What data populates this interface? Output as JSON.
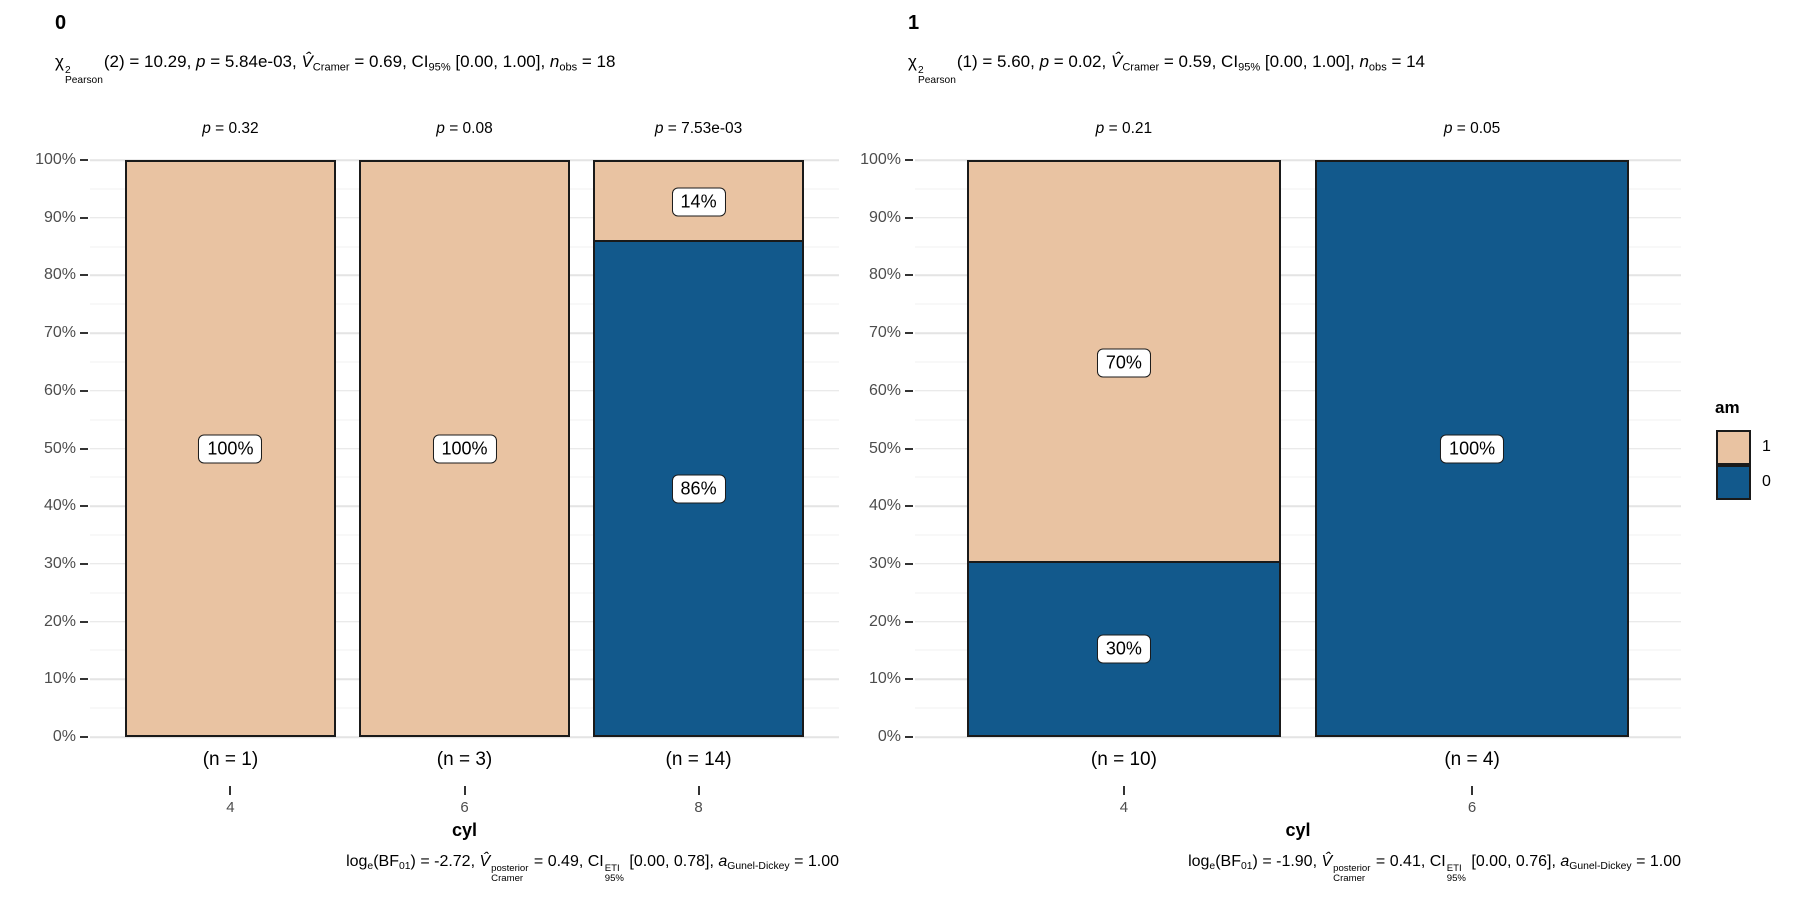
{
  "colors": {
    "1": "#E9C3A2",
    "0": "#12598C",
    "bar_border": "#1a1a1a",
    "grid_major": "#e4e4e4",
    "grid_minor": "#f2f2f2",
    "axis_text": "#4d4d4d"
  },
  "legend": {
    "title": "am",
    "items": [
      {
        "label": "1",
        "group": "1",
        "color": "#E9C3A2"
      },
      {
        "label": "0",
        "group": "0",
        "color": "#12598C"
      }
    ]
  },
  "chart_data": [
    {
      "type": "bar",
      "stacked": true,
      "percent": true,
      "title": "0",
      "xlabel": "cyl",
      "legend_title": "am",
      "ylim": [
        0,
        100
      ],
      "yticks": [
        "0%",
        "10%",
        "20%",
        "30%",
        "40%",
        "50%",
        "60%",
        "70%",
        "80%",
        "90%",
        "100%"
      ],
      "subtitle_plain": "χ²Pearson(2) = 10.29, p = 5.84e-03, V̂Cramer = 0.69, CI95% [0.00, 1.00], nobs = 18",
      "caption_plain": "loge(BF01) = -2.72, V̂Cramer posterior = 0.49, CI95% ETI [0.00, 0.78], aGunel-Dickey = 1.00",
      "subtitle_segments": [
        {
          "t": "χ"
        },
        {
          "sup": "2",
          "sub": "Pearson"
        },
        {
          "t": "(2) = 10.29, "
        },
        {
          "t": "p",
          "s": "i"
        },
        {
          "t": " = 5.84e-03, "
        },
        {
          "t": "V̂",
          "s": "i"
        },
        {
          "t": "Cramer",
          "s": "sub"
        },
        {
          "t": " = 0.69, CI"
        },
        {
          "t": "95%",
          "s": "sub"
        },
        {
          "t": " [0.00, 1.00], "
        },
        {
          "t": "n",
          "s": "i"
        },
        {
          "t": "obs",
          "s": "sub"
        },
        {
          "t": " = 18"
        }
      ],
      "caption_segments": [
        {
          "t": "log"
        },
        {
          "t": "e",
          "s": "sub"
        },
        {
          "t": "(BF"
        },
        {
          "t": "01",
          "s": "sub"
        },
        {
          "t": ") = -2.72, "
        },
        {
          "t": "V̂",
          "s": "i"
        },
        {
          "sup": "posterior",
          "sub": "Cramer"
        },
        {
          "t": " = 0.49, CI"
        },
        {
          "sup": "ETI",
          "sub": "95%"
        },
        {
          "t": " [0.00, 0.78], "
        },
        {
          "t": "a",
          "s": "i"
        },
        {
          "t": "Gunel-Dickey",
          "s": "sub"
        },
        {
          "t": " = 1.00"
        }
      ],
      "categories": [
        "4",
        "6",
        "8"
      ],
      "series": [
        {
          "name": "1",
          "values": [
            100,
            100,
            14
          ]
        },
        {
          "name": "0",
          "values": [
            0,
            0,
            86
          ]
        }
      ],
      "bars": [
        {
          "category": "4",
          "n_label": "(n = 1)",
          "p_label": "p = 0.32",
          "segments": [
            {
              "group": "1",
              "value": 100,
              "label": "100%"
            }
          ]
        },
        {
          "category": "6",
          "n_label": "(n = 3)",
          "p_label": "p = 0.08",
          "segments": [
            {
              "group": "1",
              "value": 100,
              "label": "100%"
            }
          ]
        },
        {
          "category": "8",
          "n_label": "(n = 14)",
          "p_label": "p = 7.53e-03",
          "segments": [
            {
              "group": "0",
              "value": 86,
              "label": "86%"
            },
            {
              "group": "1",
              "value": 14,
              "label": "14%"
            }
          ]
        }
      ]
    },
    {
      "type": "bar",
      "stacked": true,
      "percent": true,
      "title": "1",
      "xlabel": "cyl",
      "legend_title": "am",
      "ylim": [
        0,
        100
      ],
      "yticks": [
        "0%",
        "10%",
        "20%",
        "30%",
        "40%",
        "50%",
        "60%",
        "70%",
        "80%",
        "90%",
        "100%"
      ],
      "subtitle_plain": "χ²Pearson(1) = 5.60, p = 0.02, V̂Cramer = 0.59, CI95% [0.00, 1.00], nobs = 14",
      "caption_plain": "loge(BF01) = -1.90, V̂Cramer posterior = 0.41, CI95% ETI [0.00, 0.76], aGunel-Dickey = 1.00",
      "subtitle_segments": [
        {
          "t": "χ"
        },
        {
          "sup": "2",
          "sub": "Pearson"
        },
        {
          "t": "(1) = 5.60, "
        },
        {
          "t": "p",
          "s": "i"
        },
        {
          "t": " = 0.02, "
        },
        {
          "t": "V̂",
          "s": "i"
        },
        {
          "t": "Cramer",
          "s": "sub"
        },
        {
          "t": " = 0.59, CI"
        },
        {
          "t": "95%",
          "s": "sub"
        },
        {
          "t": " [0.00, 1.00], "
        },
        {
          "t": "n",
          "s": "i"
        },
        {
          "t": "obs",
          "s": "sub"
        },
        {
          "t": " = 14"
        }
      ],
      "caption_segments": [
        {
          "t": "log"
        },
        {
          "t": "e",
          "s": "sub"
        },
        {
          "t": "(BF"
        },
        {
          "t": "01",
          "s": "sub"
        },
        {
          "t": ") = -1.90, "
        },
        {
          "t": "V̂",
          "s": "i"
        },
        {
          "sup": "posterior",
          "sub": "Cramer"
        },
        {
          "t": " = 0.41, CI"
        },
        {
          "sup": "ETI",
          "sub": "95%"
        },
        {
          "t": " [0.00, 0.76], "
        },
        {
          "t": "a",
          "s": "i"
        },
        {
          "t": "Gunel-Dickey",
          "s": "sub"
        },
        {
          "t": " = 1.00"
        }
      ],
      "categories": [
        "4",
        "6"
      ],
      "series": [
        {
          "name": "1",
          "values": [
            70,
            0
          ]
        },
        {
          "name": "0",
          "values": [
            30,
            100
          ]
        }
      ],
      "bars": [
        {
          "category": "4",
          "n_label": "(n = 10)",
          "p_label": "p = 0.21",
          "segments": [
            {
              "group": "0",
              "value": 30,
              "label": "30%"
            },
            {
              "group": "1",
              "value": 70,
              "label": "70%"
            }
          ]
        },
        {
          "category": "6",
          "n_label": "(n = 4)",
          "p_label": "p = 0.05",
          "segments": [
            {
              "group": "0",
              "value": 100,
              "label": "100%"
            }
          ]
        }
      ]
    }
  ]
}
